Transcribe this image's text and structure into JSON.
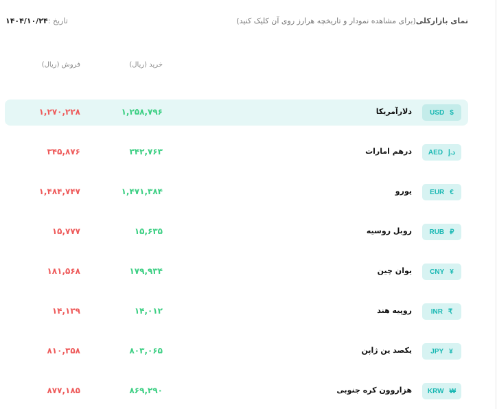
{
  "header": {
    "title": "نمای بازارکلی",
    "subtitle": "(برای مشاهده نمودار و تاریخچه هرارز روی آن کلیک کنید)",
    "date_label": "تاریخ :",
    "date_value": "۱۴۰۴/۱۰/۲۴"
  },
  "columns": {
    "buy": "خرید (ریال)",
    "sell": "فروش (ریال)"
  },
  "colors": {
    "buy": "#3ccf83",
    "sell": "#ee5a5a",
    "accent": "#19b8b3",
    "highlight": "#e5f7f6"
  },
  "rows": [
    {
      "code": "USD",
      "symbol": "$",
      "name": "دلارآمریکا",
      "buy": "۱,۲۵۸,۷۹۶",
      "sell": "۱,۲۷۰,۲۲۸",
      "highlighted": true
    },
    {
      "code": "AED",
      "symbol": "د.إ",
      "name": "درهم امارات",
      "buy": "۳۴۲,۷۶۳",
      "sell": "۳۴۵,۸۷۶"
    },
    {
      "code": "EUR",
      "symbol": "€",
      "name": "یورو",
      "buy": "۱,۴۷۱,۳۸۴",
      "sell": "۱,۴۸۴,۷۴۷"
    },
    {
      "code": "RUB",
      "symbol": "₽",
      "name": "روبل روسیه",
      "buy": "۱۵,۶۳۵",
      "sell": "۱۵,۷۷۷"
    },
    {
      "code": "CNY",
      "symbol": "¥",
      "name": "یوان چین",
      "buy": "۱۷۹,۹۳۴",
      "sell": "۱۸۱,۵۶۸"
    },
    {
      "code": "INR",
      "symbol": "₹",
      "name": "روپیه هند",
      "buy": "۱۴,۰۱۲",
      "sell": "۱۴,۱۳۹"
    },
    {
      "code": "JPY",
      "symbol": "¥",
      "name": "یکصد ین ژاپن",
      "buy": "۸۰۳,۰۶۵",
      "sell": "۸۱۰,۳۵۸"
    },
    {
      "code": "KRW",
      "symbol": "₩",
      "name": "هزاروون کره جنوبی",
      "buy": "۸۶۹,۲۹۰",
      "sell": "۸۷۷,۱۸۵"
    }
  ]
}
